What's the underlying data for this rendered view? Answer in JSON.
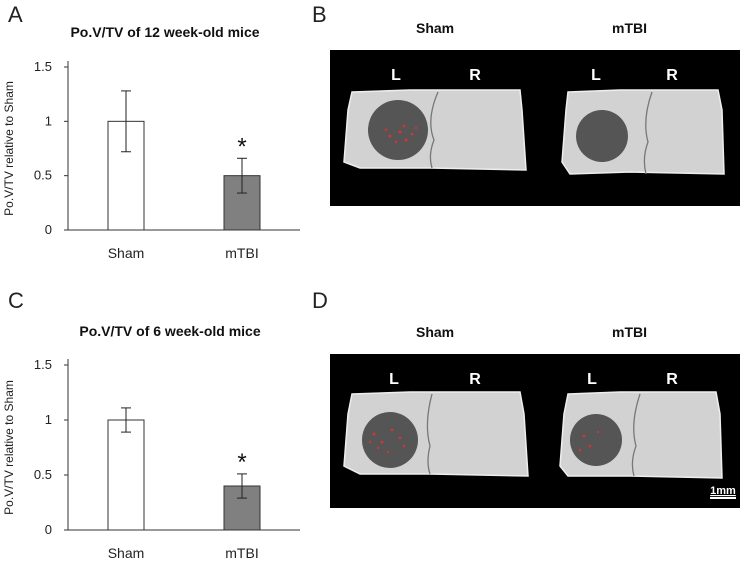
{
  "panel_letters": [
    "A",
    "B",
    "C",
    "D"
  ],
  "image_panels": [
    {
      "col_labels": [
        "Sham",
        "mTBI"
      ],
      "side_labels": [
        "L",
        "R",
        "L",
        "R"
      ],
      "scale_label": ""
    },
    {
      "col_labels": [
        "Sham",
        "mTBI"
      ],
      "side_labels": [
        "L",
        "R",
        "L",
        "R"
      ],
      "scale_label": "1mm"
    }
  ],
  "colors": {
    "sham_bar": "#ffffff",
    "mtbi_bar": "#808080",
    "image_bg": "#000000",
    "bone": "#d4d4d4",
    "defect": "#555555",
    "bone_hits": "#e03030"
  },
  "chart_data": [
    {
      "type": "bar",
      "title": "Po.V/TV of 12 week-old mice",
      "xlabel": "",
      "ylabel": "Po.V/TV relative to Sham",
      "categories": [
        "Sham",
        "mTBI"
      ],
      "values": [
        1.0,
        0.5
      ],
      "errors": [
        0.28,
        0.16
      ],
      "significance": [
        "",
        "*"
      ],
      "ylim": [
        0,
        1.5
      ],
      "yticks": [
        0,
        0.5,
        1,
        1.5
      ],
      "ytick_labels": [
        "0",
        "0.5",
        "1",
        "1.5"
      ],
      "grid": false
    },
    {
      "type": "bar",
      "title": "Po.V/TV of 6 week-old mice",
      "xlabel": "",
      "ylabel": "Po.V/TV relative to Sham",
      "categories": [
        "Sham",
        "mTBI"
      ],
      "values": [
        1.0,
        0.4
      ],
      "errors": [
        0.11,
        0.11
      ],
      "significance": [
        "",
        "*"
      ],
      "ylim": [
        0,
        1.5
      ],
      "yticks": [
        0,
        0.5,
        1,
        1.5
      ],
      "ytick_labels": [
        "0",
        "0.5",
        "1",
        "1.5"
      ],
      "grid": false
    }
  ]
}
